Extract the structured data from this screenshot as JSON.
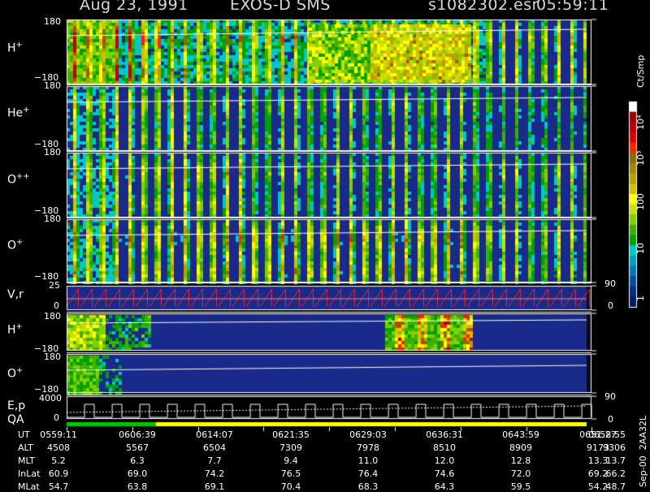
{
  "header": {
    "date": "Aug 23, 1991",
    "instrument": "EXOS-D SMS",
    "file": "s1082302.esr",
    "time": "05:59:11"
  },
  "panels": [
    {
      "label": "H",
      "sup": "+",
      "top": "180",
      "bottom": "−180"
    },
    {
      "label": "He",
      "sup": "+",
      "top": "180",
      "bottom": "−180"
    },
    {
      "label": "O",
      "sup": "++",
      "top": "180",
      "bottom": "−180"
    },
    {
      "label": "O",
      "sup": "+",
      "top": "180",
      "bottom": "−180"
    },
    {
      "label": "V,r",
      "sup": "",
      "top": "25",
      "bottom": "0"
    },
    {
      "label": "H",
      "sup": "+",
      "top": "180",
      "bottom": "−180"
    },
    {
      "label": "O",
      "sup": "+",
      "top": "180",
      "bottom": "−180"
    },
    {
      "label": "E,p",
      "sup": "",
      "top": "4000",
      "bottom": "0"
    }
  ],
  "qa_label": "QA",
  "right_axis": {
    "vr_top": "90",
    "vr_bottom": "0",
    "low_top": "90",
    "low_bottom": "0"
  },
  "colorbar": {
    "unit": "Ct/Smp",
    "labels": [
      "10⁴",
      "10³",
      "100",
      "10",
      "1"
    ],
    "colors": [
      "#ffffff",
      "#9a0000",
      "#c00000",
      "#e00000",
      "#ff2000",
      "#8b6a00",
      "#a08800",
      "#b8a000",
      "#d4c000",
      "#ffff00",
      "#c8e000",
      "#80d000",
      "#40b000",
      "#00a000",
      "#00c8c8",
      "#00a0c0",
      "#0078c0",
      "#0050a0",
      "#003080",
      "#001a60"
    ]
  },
  "side_text": "Sep-00  2AA32L",
  "table": {
    "row_labels": [
      "UT",
      "ALT",
      "MLT",
      "InLat",
      "MLat"
    ],
    "columns": [
      [
        "0559:11",
        "4508",
        "5.2",
        "60.9",
        "54.7"
      ],
      [
        "0606:39",
        "5567",
        "6.3",
        "69.0",
        "63.8"
      ],
      [
        "0614:07",
        "6504",
        "7.7",
        "74.2",
        "69.1"
      ],
      [
        "0621:35",
        "7309",
        "9.4",
        "76.5",
        "70.4"
      ],
      [
        "0629:03",
        "7978",
        "11.0",
        "76.4",
        "68.3"
      ],
      [
        "0636:31",
        "8510",
        "12.0",
        "74.6",
        "64.3"
      ],
      [
        "0643:59",
        "8909",
        "12.8",
        "72.0",
        "59.5"
      ],
      [
        "0651:27",
        "9173",
        "13.3",
        "69.2",
        "54.2"
      ],
      [
        "0658:55",
        "9306",
        "13.7",
        "66.2",
        "48.7"
      ]
    ]
  },
  "chart_data": {
    "type": "heatmap",
    "title": "Aug 23, 1991   EXOS-D SMS",
    "ylabel": "",
    "colorbar_unit": "Ct/Smp",
    "colorbar_scale": "log",
    "colorbar_range": [
      1,
      10000
    ],
    "panels": [
      {
        "name": "H+",
        "ylim": [
          -180,
          180
        ]
      },
      {
        "name": "He+",
        "ylim": [
          -180,
          180
        ]
      },
      {
        "name": "O++",
        "ylim": [
          -180,
          180
        ]
      },
      {
        "name": "O+",
        "ylim": [
          -180,
          180
        ]
      },
      {
        "name": "V,r",
        "ylim": [
          0,
          25
        ],
        "right_ylim": [
          0,
          90
        ]
      },
      {
        "name": "H+",
        "ylim": [
          -180,
          180
        ]
      },
      {
        "name": "O+",
        "ylim": [
          -180,
          180
        ]
      },
      {
        "name": "E,p",
        "ylim": [
          0,
          4000
        ],
        "right_ylim": [
          0,
          90
        ]
      }
    ],
    "x_ticks": [
      "0559:11",
      "0606:39",
      "0614:07",
      "0621:35",
      "0629:03",
      "0636:31",
      "0643:59",
      "0651:27",
      "0658:55"
    ]
  }
}
